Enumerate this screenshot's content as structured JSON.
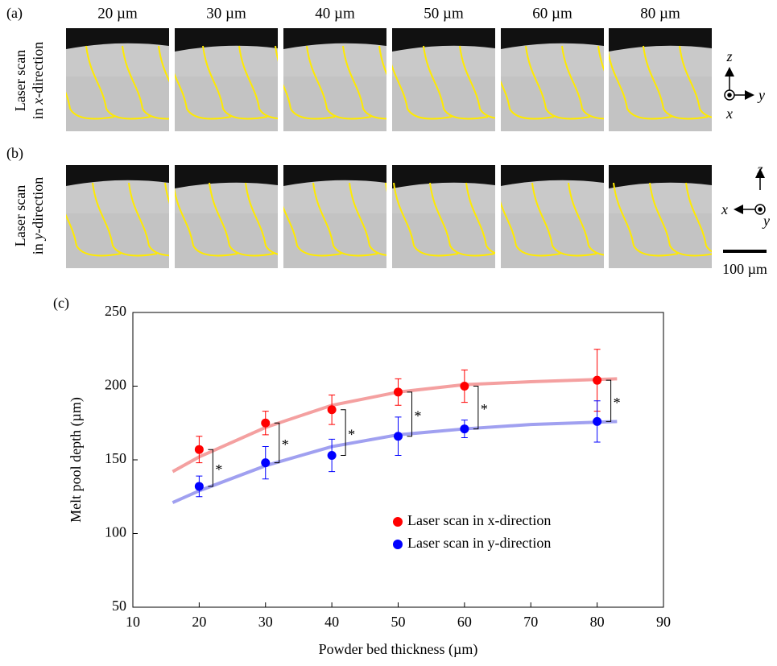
{
  "figure": {
    "panel_a_label": "(a)",
    "panel_b_label": "(b)",
    "panel_c_label": "(c)",
    "columns": [
      "20 µm",
      "30 µm",
      "40 µm",
      "50 µm",
      "60 µm",
      "80 µm"
    ],
    "row_a_label": [
      "Laser scan",
      "in ",
      "x",
      "-direction"
    ],
    "row_b_label": [
      "Laser scan",
      "in ",
      "y",
      "-direction"
    ],
    "axes_a": {
      "up": "z",
      "side": "y",
      "out": "x"
    },
    "axes_b": {
      "up": "z",
      "side": "x",
      "out": "y"
    },
    "scale_bar": "100 µm"
  },
  "chart_data": {
    "type": "scatter",
    "xlabel": "Powder bed thickness (µm)",
    "ylabel": "Melt pool depth (µm)",
    "xlim": [
      10,
      90
    ],
    "ylim": [
      50,
      250
    ],
    "xticks": [
      10,
      20,
      30,
      40,
      50,
      60,
      70,
      80,
      90
    ],
    "yticks": [
      50,
      100,
      150,
      200,
      250
    ],
    "grid": false,
    "legend": "lower right",
    "x": [
      20,
      30,
      40,
      50,
      60,
      80
    ],
    "series": [
      {
        "name": "Laser scan in x-direction",
        "color": "#ff0000",
        "values": [
          157,
          175,
          184,
          196,
          200,
          204
        ],
        "errors": [
          9,
          8,
          10,
          9,
          11,
          21
        ]
      },
      {
        "name": "Laser scan in y-direction",
        "color": "#0000ff",
        "values": [
          132,
          148,
          153,
          166,
          171,
          176
        ],
        "errors": [
          7,
          11,
          11,
          13,
          6,
          14
        ]
      }
    ],
    "fits": [
      {
        "color": "#f4a0a0",
        "x": [
          16,
          20,
          30,
          40,
          50,
          60,
          70,
          83
        ],
        "values": [
          142,
          152,
          172,
          187,
          196,
          201,
          203,
          205
        ]
      },
      {
        "color": "#a0a0f0",
        "x": [
          16,
          20,
          30,
          40,
          50,
          60,
          70,
          83
        ],
        "values": [
          121,
          129,
          146,
          159,
          167,
          171,
          174,
          176
        ]
      }
    ],
    "annotations": [
      "*",
      "*",
      "*",
      "*",
      "*",
      "*"
    ]
  }
}
